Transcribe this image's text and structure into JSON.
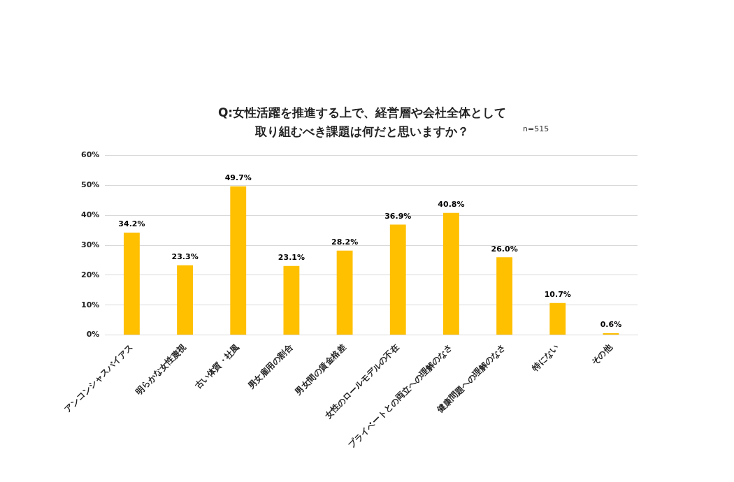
{
  "chart_data": {
    "type": "bar",
    "title": "Q:女性活躍を推進する上で、経営層や会社全体として取り組むべき課題は何だと思いますか？",
    "annotations": [
      "n=515"
    ],
    "categories": [
      "アンコンシャスバイアス",
      "明らかな女性蔑視",
      "古い体質・社風",
      "男女雇用の割合",
      "男女間の賃金格差",
      "女性のロールモデルの不在",
      "プライベートとの両立への理解のなさ",
      "健康問題への理解のなさ",
      "特にない",
      "その他"
    ],
    "values": [
      34.2,
      23.3,
      49.7,
      23.1,
      28.2,
      36.9,
      40.8,
      26.0,
      10.7,
      0.6
    ],
    "value_labels": [
      "34.2%",
      "23.3%",
      "49.7%",
      "23.1%",
      "28.2%",
      "36.9%",
      "40.8%",
      "26.0%",
      "10.7%",
      "0.6%"
    ],
    "color": "#ffc000",
    "ylim": [
      0,
      60
    ],
    "yticks": [
      {
        "value": 0,
        "label": "0%"
      },
      {
        "value": 10,
        "label": "10%"
      },
      {
        "value": 20,
        "label": "20%"
      },
      {
        "value": 30,
        "label": "30%"
      },
      {
        "value": 40,
        "label": "40%"
      },
      {
        "value": 50,
        "label": "50%"
      },
      {
        "value": 60,
        "label": "60%"
      }
    ],
    "grid": "y",
    "legend": false
  }
}
